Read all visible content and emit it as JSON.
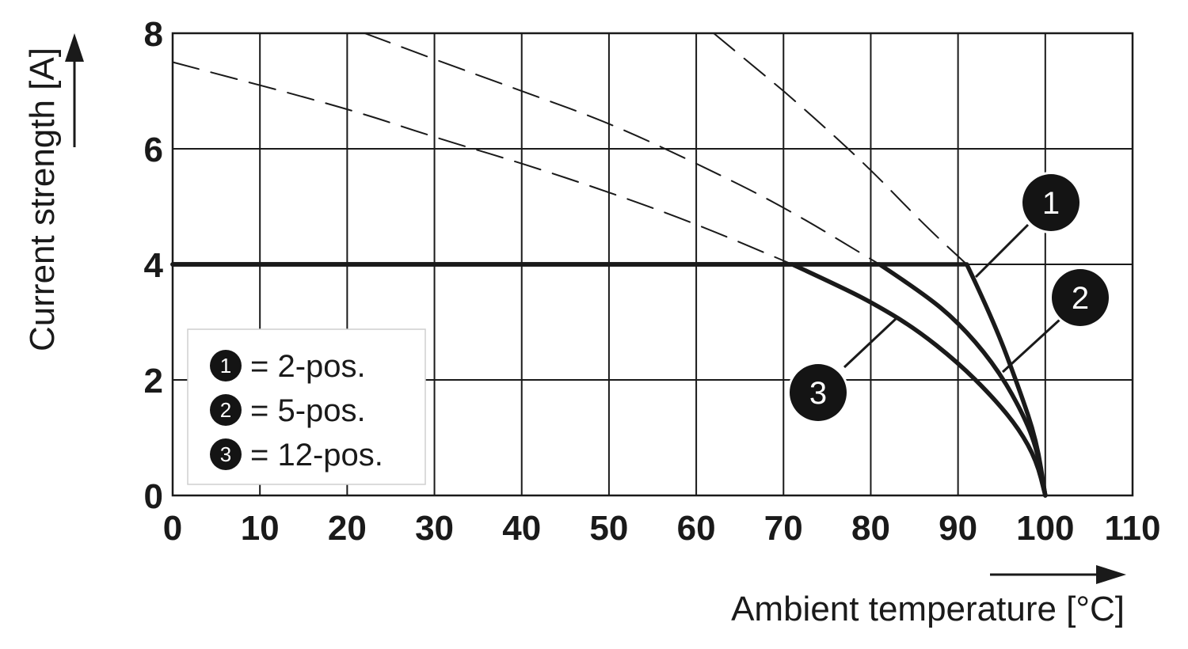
{
  "chart_data": {
    "type": "line",
    "xlabel": "Ambient temperature [°C]",
    "ylabel": "Current strength [A]",
    "xlim": [
      0,
      110
    ],
    "ylim": [
      0,
      8
    ],
    "x_ticks": [
      "0",
      "10",
      "20",
      "30",
      "40",
      "50",
      "60",
      "70",
      "80",
      "90",
      "100",
      "110"
    ],
    "y_ticks": [
      "0",
      "2",
      "4",
      "6",
      "8"
    ],
    "grid": true,
    "legend_position": "bottom-left",
    "legend": [
      {
        "marker": "1",
        "label": "= 2-pos."
      },
      {
        "marker": "2",
        "label": "= 5-pos."
      },
      {
        "marker": "3",
        "label": "= 12-pos."
      }
    ],
    "series": [
      {
        "marker": "1",
        "style": "solid",
        "x": [
          0,
          91,
          94,
          97,
          99,
          100
        ],
        "y": [
          4,
          4,
          3.05,
          1.85,
          0.95,
          0
        ]
      },
      {
        "marker": "2",
        "style": "solid",
        "x": [
          0,
          81,
          86,
          90,
          94,
          97,
          99,
          100
        ],
        "y": [
          4,
          4,
          3.5,
          3.0,
          2.3,
          1.55,
          0.85,
          0
        ]
      },
      {
        "marker": "3",
        "style": "solid",
        "x": [
          0,
          71,
          76,
          80,
          85,
          90,
          94,
          97,
          99,
          100
        ],
        "y": [
          4,
          4,
          3.65,
          3.35,
          2.9,
          2.3,
          1.7,
          1.15,
          0.6,
          0
        ]
      },
      {
        "marker": "1",
        "style": "dashed",
        "x": [
          62,
          70,
          78,
          86,
          91
        ],
        "y": [
          8,
          7.0,
          5.95,
          4.7,
          4
        ]
      },
      {
        "marker": "2",
        "style": "dashed",
        "x": [
          22,
          30,
          40,
          50,
          60,
          70,
          81
        ],
        "y": [
          8,
          7.55,
          7.0,
          6.45,
          5.75,
          5.0,
          4
        ]
      },
      {
        "marker": "3",
        "style": "dashed",
        "x": [
          0,
          10,
          20,
          30,
          40,
          50,
          60,
          71
        ],
        "y": [
          7.5,
          7.1,
          6.7,
          6.2,
          5.75,
          5.25,
          4.7,
          4
        ]
      }
    ],
    "callouts": [
      {
        "marker": "1"
      },
      {
        "marker": "2"
      },
      {
        "marker": "3"
      }
    ]
  }
}
